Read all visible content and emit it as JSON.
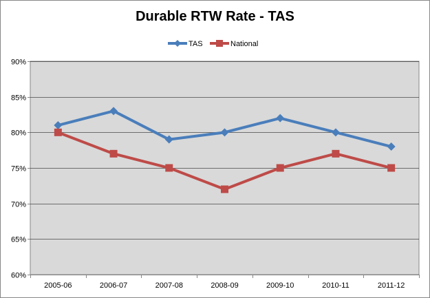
{
  "chart_data": {
    "type": "line",
    "title": "Durable RTW Rate - TAS",
    "xlabel": "",
    "ylabel": "",
    "categories": [
      "2005-06",
      "2006-07",
      "2007-08",
      "2008-09",
      "2009-10",
      "2010-11",
      "2011-12"
    ],
    "series": [
      {
        "name": "TAS",
        "values": [
          81,
          83,
          79,
          80,
          82,
          80,
          78
        ],
        "color": "#4a7ebb",
        "marker": "diamond"
      },
      {
        "name": "National",
        "values": [
          80,
          77,
          75,
          72,
          75,
          77,
          75
        ],
        "color": "#be4b48",
        "marker": "square"
      }
    ],
    "ylim": [
      60,
      90
    ],
    "ytick_step": 5,
    "ytick_labels": [
      "60%",
      "65%",
      "70%",
      "75%",
      "80%",
      "85%",
      "90%"
    ],
    "grid": true,
    "legend_position": "top",
    "plot_background": "#d9d9d9",
    "gridline_color": "#000000"
  }
}
